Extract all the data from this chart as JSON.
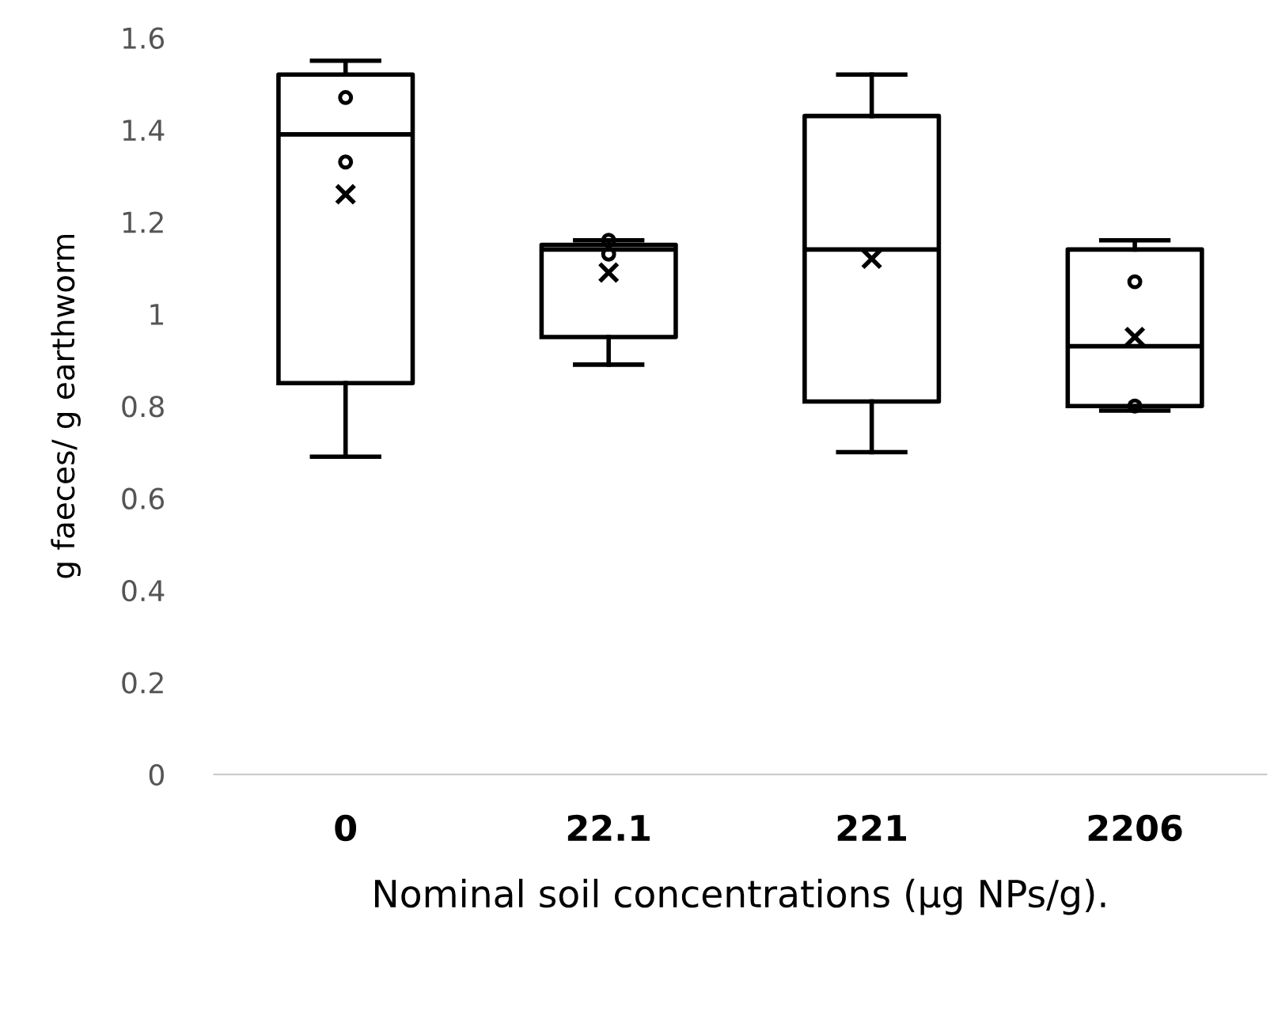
{
  "chart_data": {
    "type": "box",
    "xlabel": "Nominal soil concentrations (µg NPs/g).",
    "ylabel": "g faeces/ g earthworm",
    "categories": [
      "0",
      "22.1",
      "221",
      "2206"
    ],
    "ylim": [
      0,
      1.6
    ],
    "yticks": [
      0,
      0.2,
      0.4,
      0.6,
      0.8,
      1,
      1.2,
      1.4,
      1.6
    ],
    "grid": false,
    "boxes": [
      {
        "low": 0.69,
        "q1": 0.85,
        "median": 1.39,
        "q3": 1.52,
        "high": 1.55,
        "mean": 1.26,
        "outliers": [
          1.47,
          1.33
        ]
      },
      {
        "low": 0.89,
        "q1": 0.95,
        "median": 1.14,
        "q3": 1.15,
        "high": 1.16,
        "mean": 1.09,
        "outliers": [
          1.16,
          1.13
        ]
      },
      {
        "low": 0.7,
        "q1": 0.81,
        "median": 1.14,
        "q3": 1.43,
        "high": 1.52,
        "mean": 1.12
      },
      {
        "low": 0.79,
        "q1": 0.8,
        "median": 0.93,
        "q3": 1.14,
        "high": 1.16,
        "mean": 0.95,
        "outliers": [
          1.07,
          0.8
        ]
      }
    ]
  }
}
